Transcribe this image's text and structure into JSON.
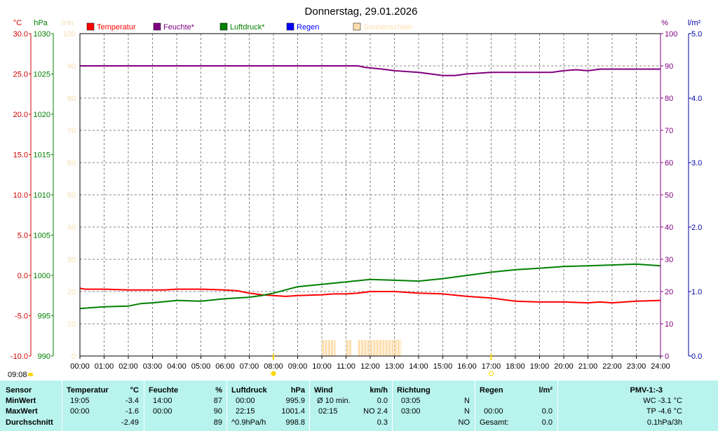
{
  "title": "Donnerstag, 29.01.2026",
  "axis_units": {
    "temp": "°C",
    "press": "hPa",
    "sun": "min",
    "hum": "%",
    "rain": "l/m²"
  },
  "legend": [
    {
      "label": "Temperatur",
      "color": "#ff0000"
    },
    {
      "label": "Feuchte*",
      "color": "#800080"
    },
    {
      "label": "Luftdruck*",
      "color": "#008000"
    },
    {
      "label": "Regen",
      "color": "#0000ff"
    },
    {
      "label": "Sonnenschein",
      "color": "#ffdead"
    }
  ],
  "time_marker": "09:08",
  "colors": {
    "temp": "#ff0000",
    "hum": "#800080",
    "press": "#008000",
    "rain": "#0000ff",
    "sun": "#ffdead",
    "sun_axis": "#f5deb3",
    "panel": "#b8f3ee",
    "marker": "#ffd700"
  },
  "chart_data": {
    "type": "line",
    "title": "Donnerstag, 29.01.2026",
    "x_ticks": [
      "00:00",
      "01:00",
      "02:00",
      "03:00",
      "04:00",
      "05:00",
      "06:00",
      "07:00",
      "08:00",
      "09:00",
      "10:00",
      "11:00",
      "12:00",
      "13:00",
      "14:00",
      "15:00",
      "16:00",
      "17:00",
      "18:00",
      "19:00",
      "20:00",
      "21:00",
      "22:00",
      "23:00",
      "24:00"
    ],
    "xlim": [
      0,
      24
    ],
    "grid": true,
    "legend_position": "top",
    "axes": {
      "temp": {
        "unit": "°C",
        "range": [
          -10,
          30
        ],
        "ticks": [
          "30.0",
          "25.0",
          "20.0",
          "15.0",
          "10.0",
          "5.0",
          "0.0",
          "-5.0",
          "-10.0"
        ]
      },
      "press": {
        "unit": "hPa",
        "range": [
          990,
          1030
        ],
        "ticks": [
          "1030",
          "1025",
          "1020",
          "1015",
          "1010",
          "1005",
          "1000",
          "995",
          "990"
        ]
      },
      "sun": {
        "unit": "min",
        "range": [
          0,
          100
        ],
        "ticks": [
          "100",
          "90",
          "80",
          "70",
          "60",
          "50",
          "40",
          "30",
          "20",
          "10",
          "0"
        ]
      },
      "hum": {
        "unit": "%",
        "range": [
          0,
          100
        ],
        "ticks": [
          "100",
          "90",
          "80",
          "70",
          "60",
          "50",
          "40",
          "30",
          "20",
          "10",
          "0"
        ]
      },
      "rain": {
        "unit": "l/m²",
        "range": [
          0,
          5
        ],
        "ticks": [
          "5.0",
          "4.0",
          "3.0",
          "2.0",
          "1.0",
          "0.0"
        ]
      }
    },
    "series": [
      {
        "name": "Temperatur",
        "axis": "temp",
        "color": "#ff0000",
        "points": [
          [
            0,
            -1.6
          ],
          [
            0.2,
            -1.7
          ],
          [
            1,
            -1.7
          ],
          [
            2,
            -1.8
          ],
          [
            3,
            -1.8
          ],
          [
            3.5,
            -1.8
          ],
          [
            4,
            -1.7
          ],
          [
            5,
            -1.7
          ],
          [
            6,
            -1.8
          ],
          [
            6.5,
            -1.9
          ],
          [
            7,
            -2.2
          ],
          [
            7.5,
            -2.4
          ],
          [
            8,
            -2.5
          ],
          [
            8.5,
            -2.6
          ],
          [
            9,
            -2.5
          ],
          [
            10,
            -2.4
          ],
          [
            10.5,
            -2.3
          ],
          [
            11,
            -2.3
          ],
          [
            11.5,
            -2.2
          ],
          [
            12,
            -2.0
          ],
          [
            13,
            -2.0
          ],
          [
            14,
            -2.2
          ],
          [
            15,
            -2.3
          ],
          [
            16,
            -2.6
          ],
          [
            17,
            -2.8
          ],
          [
            17.5,
            -3.0
          ],
          [
            18,
            -3.2
          ],
          [
            19,
            -3.3
          ],
          [
            20,
            -3.3
          ],
          [
            21,
            -3.4
          ],
          [
            21.5,
            -3.3
          ],
          [
            22,
            -3.4
          ],
          [
            23,
            -3.2
          ],
          [
            24,
            -3.1
          ]
        ]
      },
      {
        "name": "Feuchte*",
        "axis": "hum",
        "color": "#800080",
        "points": [
          [
            0,
            90
          ],
          [
            11.5,
            90
          ],
          [
            11.8,
            89.5
          ],
          [
            12.5,
            89
          ],
          [
            13,
            88.5
          ],
          [
            14,
            88
          ],
          [
            14.5,
            87.5
          ],
          [
            15,
            87
          ],
          [
            15.5,
            87
          ],
          [
            16,
            87.5
          ],
          [
            17,
            88
          ],
          [
            19,
            88
          ],
          [
            19.5,
            88
          ],
          [
            20,
            88.5
          ],
          [
            20.5,
            88.8
          ],
          [
            21,
            88.5
          ],
          [
            21.5,
            89
          ],
          [
            24,
            89
          ]
        ]
      },
      {
        "name": "Luftdruck*",
        "axis": "press",
        "color": "#008000",
        "points": [
          [
            0,
            995.9
          ],
          [
            0.5,
            996.0
          ],
          [
            1,
            996.1
          ],
          [
            2,
            996.2
          ],
          [
            2.5,
            996.5
          ],
          [
            3,
            996.6
          ],
          [
            4,
            996.9
          ],
          [
            5,
            996.8
          ],
          [
            6,
            997.1
          ],
          [
            7,
            997.3
          ],
          [
            7.5,
            997.5
          ],
          [
            8,
            997.8
          ],
          [
            8.5,
            998.2
          ],
          [
            9,
            998.6
          ],
          [
            10,
            998.9
          ],
          [
            11,
            999.2
          ],
          [
            12,
            999.5
          ],
          [
            13,
            999.4
          ],
          [
            14,
            999.3
          ],
          [
            15,
            999.6
          ],
          [
            16,
            1000.0
          ],
          [
            17,
            1000.4
          ],
          [
            18,
            1000.7
          ],
          [
            19,
            1000.9
          ],
          [
            20,
            1001.1
          ],
          [
            21,
            1001.2
          ],
          [
            22,
            1001.3
          ],
          [
            23,
            1001.4
          ],
          [
            24,
            1001.2
          ]
        ]
      },
      {
        "name": "Regen",
        "axis": "rain",
        "color": "#0000ff",
        "points": []
      },
      {
        "name": "Sonnenschein",
        "axis": "sun",
        "color": "#ffdead",
        "type": "bar",
        "intervals": [
          [
            10,
            10.6
          ],
          [
            11,
            11.25
          ],
          [
            11.5,
            13.3
          ]
        ],
        "value": 5
      }
    ],
    "events": [
      {
        "name": "sunrise",
        "x": 8.0
      },
      {
        "name": "sunset",
        "x": 17.0
      }
    ]
  },
  "stats": {
    "header": {
      "sensor": "Sensor",
      "temperatur": "Temperatur",
      "temp_unit": "°C",
      "feuchte": "Feuchte",
      "hum_unit": "%",
      "luftdruck": "Luftdruck",
      "press_unit": "hPa",
      "wind": "Wind",
      "wind_unit": "km/h",
      "richtung": "Richtung",
      "regen": "Regen",
      "rain_unit": "l/m²",
      "pmv": "PMV-1:-3"
    },
    "min": {
      "label": "MinWert",
      "temp_time": "19:05",
      "temp": "-3.4",
      "hum_time": "14:00",
      "hum": "87",
      "press_time": "00:00",
      "press": "995.9",
      "wind_label": "Ø 10 min.",
      "wind": "0.0",
      "dir_time": "03:05",
      "dir": "N",
      "extra": "WC -3.1 °C"
    },
    "max": {
      "label": "MaxWert",
      "temp_time": "00:00",
      "temp": "-1.6",
      "hum_time": "00:00",
      "hum": "90",
      "press_time": "22:15",
      "press": "1001.4",
      "wind_time": "02:15",
      "wind": "NO 2.4",
      "dir_time": "03:00",
      "dir": "N",
      "rain_time": "00:00",
      "rain": "0.0",
      "extra": "TP -4.6 °C"
    },
    "avg": {
      "label": "Durchschnitt",
      "temp": "-2.49",
      "hum": "89",
      "press_trend": "^0.9hPa/h",
      "press": "998.8",
      "wind": "0.3",
      "dir": "NO",
      "rain_label": "Gesamt:",
      "rain": "0.0",
      "extra": "0.1hPa/3h"
    }
  }
}
